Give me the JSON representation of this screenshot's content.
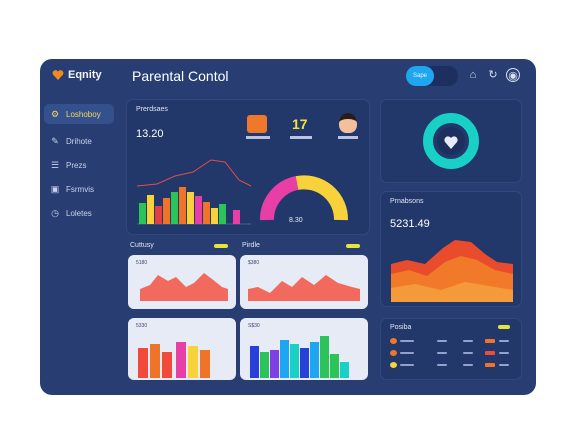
{
  "header": {
    "logo_text": "Eqnity",
    "title": "Parental Contol",
    "toggle_active_label": "Sape"
  },
  "sidebar": {
    "items": [
      {
        "label": "Loshoboy",
        "icon": "settings-icon",
        "active": true
      },
      {
        "label": "Drihote",
        "icon": "edit-icon",
        "active": false
      },
      {
        "label": "Prezs",
        "icon": "document-icon",
        "active": false
      },
      {
        "label": "Fsrmvis",
        "icon": "image-icon",
        "active": false
      },
      {
        "label": "Loletes",
        "icon": "clock-icon",
        "active": false
      }
    ]
  },
  "overview": {
    "title": "Prerdsaes",
    "value": "13.20",
    "stat_value": "17"
  },
  "activity": {
    "title": "Prnabsons",
    "value": "5231.49"
  },
  "panels": {
    "left_title": "Cuttusy",
    "mid_title": "Pirdle",
    "mini1_value": "5180",
    "mini2_value": "$380",
    "mini3_value": "5330",
    "mini4_value": "S$30"
  },
  "list_card": {
    "title": "Posiba"
  },
  "gauge": {
    "value_label": "8.30"
  },
  "colors": {
    "accent_blue": "#1ea6f0",
    "accent_yellow": "#f4e23d",
    "donut": "#19d0c7"
  }
}
